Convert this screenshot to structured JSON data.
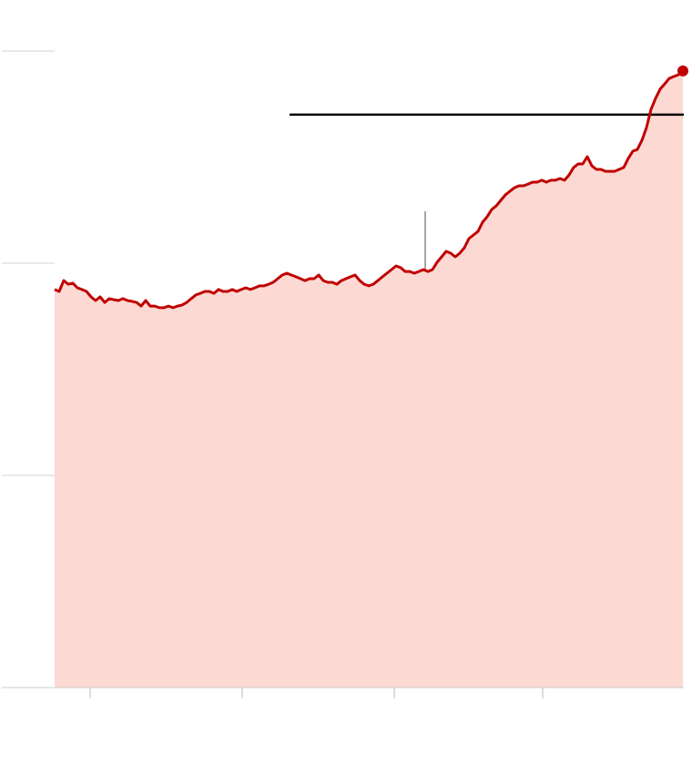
{
  "chart_data": {
    "type": "area",
    "x": [
      0,
      1,
      2,
      3,
      4,
      5,
      6,
      7,
      8,
      9,
      10,
      11,
      12,
      13,
      14,
      15,
      16,
      17,
      18,
      19,
      20,
      21,
      22,
      23,
      24,
      25,
      26,
      27,
      28,
      29,
      30,
      31,
      32,
      33,
      34,
      35,
      36,
      37,
      38,
      39,
      40,
      41,
      42,
      43,
      44,
      45,
      46,
      47,
      48,
      49,
      50,
      51,
      52,
      53,
      54,
      55,
      56,
      57,
      58,
      59,
      60,
      61,
      62,
      63,
      64,
      65,
      66,
      67,
      68,
      69,
      70,
      71,
      72,
      73,
      74,
      75,
      76,
      77,
      78,
      79,
      80,
      81,
      82,
      83,
      84,
      85,
      86,
      87,
      88,
      89,
      90,
      91,
      92,
      93,
      94,
      95,
      96,
      97,
      98,
      99,
      100,
      101,
      102,
      103,
      104,
      105,
      106,
      107,
      108,
      109,
      110,
      111,
      112,
      113,
      114,
      115,
      116,
      117,
      118,
      119,
      120,
      121,
      122,
      123,
      124,
      125,
      126,
      127,
      128,
      129,
      130,
      131,
      132,
      133,
      134,
      135,
      136,
      137,
      138
    ],
    "series": [
      {
        "color": "#c00000",
        "fill": "#fdd9d3",
        "values": [
          187.6,
          186.7,
          191.8,
          190.1,
          190.6,
          188.4,
          187.6,
          186.7,
          184.1,
          182.4,
          184.1,
          181.5,
          183.3,
          182.8,
          182.4,
          183.3,
          182.4,
          182.0,
          181.5,
          179.8,
          182.4,
          179.8,
          179.8,
          179.0,
          179.0,
          179.8,
          179.0,
          179.8,
          180.3,
          181.5,
          183.3,
          185.0,
          185.8,
          186.7,
          186.7,
          185.8,
          187.6,
          186.7,
          186.7,
          187.6,
          186.7,
          187.6,
          188.4,
          187.6,
          188.4,
          189.3,
          189.3,
          190.1,
          191.0,
          192.7,
          194.4,
          195.3,
          194.4,
          193.6,
          192.7,
          191.8,
          192.7,
          192.7,
          194.4,
          191.8,
          191.0,
          191.0,
          190.1,
          191.8,
          192.7,
          193.6,
          194.4,
          191.8,
          190.1,
          189.3,
          190.1,
          191.8,
          193.6,
          195.3,
          197.0,
          198.7,
          197.9,
          196.1,
          196.1,
          195.3,
          196.1,
          197.0,
          196.1,
          197.0,
          200.4,
          203.0,
          205.6,
          204.7,
          203.0,
          204.7,
          207.3,
          211.6,
          213.3,
          215.0,
          219.3,
          221.9,
          225.3,
          227.0,
          229.6,
          232.2,
          233.9,
          235.6,
          236.5,
          236.5,
          237.3,
          238.2,
          238.2,
          239.1,
          238.2,
          239.1,
          239.1,
          239.9,
          239.1,
          241.6,
          245.1,
          246.8,
          246.8,
          250.2,
          245.9,
          244.2,
          244.2,
          243.3,
          243.3,
          243.3,
          244.2,
          245.1,
          249.4,
          252.8,
          253.6,
          257.9,
          263.9,
          272.5,
          277.7,
          282.0,
          284.5,
          287.1,
          288.0,
          288.8,
          290.6
        ]
      }
    ],
    "xlim": [
      0,
      138.2
    ],
    "xticks": [
      7.8,
      41.2,
      74.6,
      107.2
    ],
    "ylim": [
      0,
      300
    ],
    "yticks": [
      0,
      100,
      200,
      300
    ],
    "grid": true,
    "reference_lines": [
      {
        "x": [
          51.6,
          138.2
        ],
        "y": [
          270,
          270
        ],
        "color": "#000000"
      },
      {
        "x": [
          81.4,
          81.4
        ],
        "y": [
          224.5,
          196.1
        ],
        "color": "#888888"
      }
    ]
  }
}
